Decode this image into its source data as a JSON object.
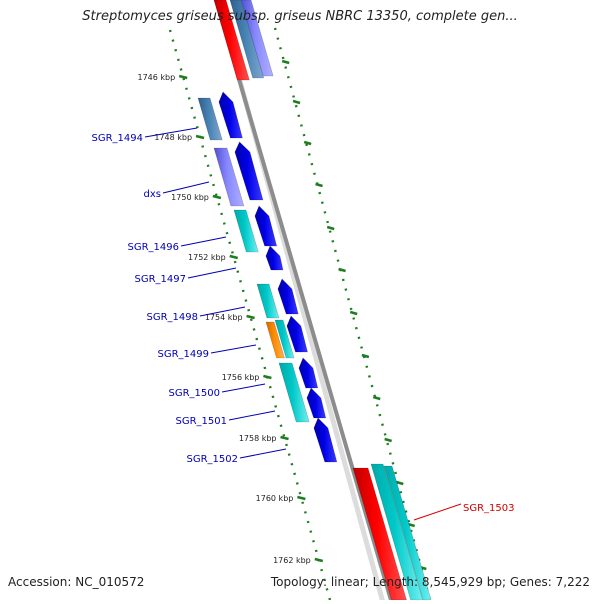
{
  "title": "Streptomyces griseus subsp. griseus NBRC 13350, complete gen...",
  "footer": {
    "accession": "Accession: NC_010572",
    "summary": "Topology: linear; Length: 8,545,929 bp; Genes: 7,222"
  },
  "colors": {
    "backbone": "#8c8c8c",
    "tick": "#1e7d1e",
    "gene_label": "#0000b4",
    "highlight_label": "#d40000",
    "cds": "#0000e6",
    "rna_red": "#ff0000",
    "teal": "#00c8c8",
    "steelblue": "#4682b4",
    "orange": "#ff8c00",
    "purple": "#8888ff"
  },
  "scale_labels": [
    "1746 kbp",
    "1748 kbp",
    "1750 kbp",
    "1752 kbp",
    "1754 kbp",
    "1756 kbp",
    "1758 kbp",
    "1760 kbp",
    "1762 kbp"
  ],
  "gene_labels": [
    {
      "text": "SGR_1494",
      "highlight": false
    },
    {
      "text": "dxs",
      "highlight": false
    },
    {
      "text": "SGR_1496",
      "highlight": false
    },
    {
      "text": "SGR_1497",
      "highlight": false
    },
    {
      "text": "SGR_1498",
      "highlight": false
    },
    {
      "text": "SGR_1499",
      "highlight": false
    },
    {
      "text": "SGR_1500",
      "highlight": false
    },
    {
      "text": "SGR_1501",
      "highlight": false
    },
    {
      "text": "SGR_1502",
      "highlight": false
    },
    {
      "text": "SGR_1503",
      "highlight": true
    }
  ]
}
